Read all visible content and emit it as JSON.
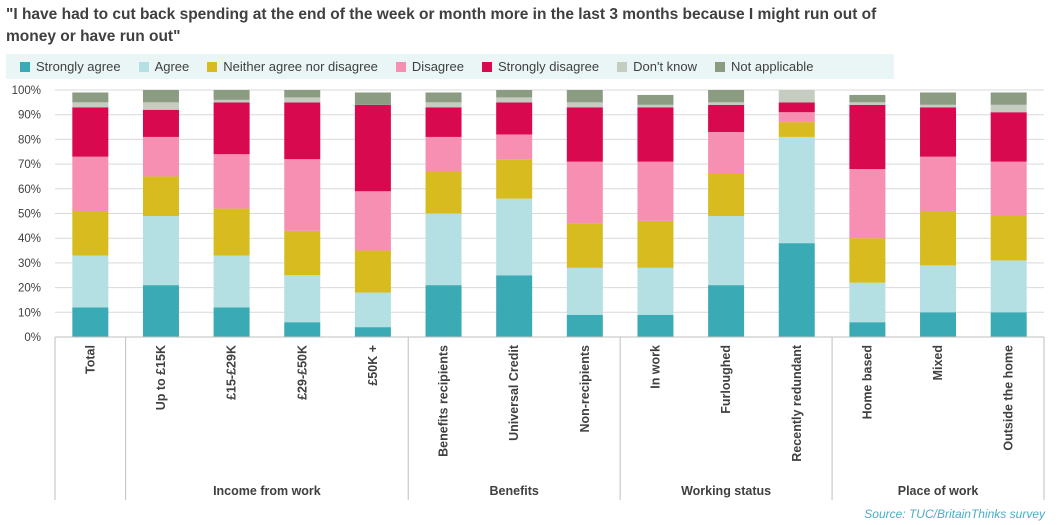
{
  "title": "\"I have had to cut back spending at the end of the week or month more in the last 3 months because I might run out of money or have run out\"",
  "source": "Source:  TUC/BritainThinks  survey",
  "chart_data": {
    "type": "bar",
    "stacked": true,
    "percent_axis": true,
    "ylim": [
      0,
      100
    ],
    "yticks": [
      "0%",
      "10%",
      "20%",
      "30%",
      "40%",
      "50%",
      "60%",
      "70%",
      "80%",
      "90%",
      "100%"
    ],
    "grid": true,
    "legend_placement": "top",
    "categories": [
      "Total",
      "Up to £15K",
      "£15-£29K",
      "£29-£50K",
      "£50K +",
      "Benefits recipients",
      "Universal Credit",
      "Non-recipients",
      "In work",
      "Furloughed",
      "Recently redundant",
      "Home based",
      "Mixed",
      "Outside the home"
    ],
    "groups": [
      {
        "label": "",
        "start": 0,
        "end": 0
      },
      {
        "label": "Income from work",
        "start": 1,
        "end": 4
      },
      {
        "label": "Benefits",
        "start": 5,
        "end": 7
      },
      {
        "label": "Working status",
        "start": 8,
        "end": 10
      },
      {
        "label": "Place of work",
        "start": 11,
        "end": 13
      }
    ],
    "series": [
      {
        "name": "Strongly agree",
        "color": "#3aaab5",
        "values": [
          12,
          21,
          12,
          6,
          4,
          21,
          25,
          9,
          9,
          21,
          38,
          6,
          10,
          10
        ]
      },
      {
        "name": "Agree",
        "color": "#b4e0e4",
        "values": [
          21,
          28,
          21,
          19,
          14,
          29,
          31,
          19,
          19,
          28,
          43,
          16,
          19,
          21
        ]
      },
      {
        "name": "Neither agree nor disagree",
        "color": "#d7bb1f",
        "values": [
          18,
          16,
          19,
          18,
          17,
          17,
          16,
          18,
          19,
          17,
          6,
          18,
          22,
          18
        ]
      },
      {
        "name": "Disagree",
        "color": "#f78fb3",
        "values": [
          22,
          16,
          22,
          29,
          24,
          14,
          10,
          25,
          24,
          17,
          4,
          28,
          22,
          22
        ]
      },
      {
        "name": "Strongly disagree",
        "color": "#d8094f",
        "values": [
          20,
          11,
          21,
          23,
          35,
          12,
          13,
          22,
          22,
          11,
          4,
          26,
          20,
          20
        ]
      },
      {
        "name": "Don't know",
        "color": "#c4cdc0",
        "values": [
          2,
          3,
          1,
          2,
          0,
          2,
          2,
          2,
          1,
          1,
          5,
          1,
          1,
          3
        ]
      },
      {
        "name": "Not applicable",
        "color": "#8c9c83",
        "values": [
          4,
          5,
          4,
          3,
          5,
          4,
          3,
          5,
          4,
          5,
          0,
          3,
          5,
          5
        ]
      }
    ]
  }
}
